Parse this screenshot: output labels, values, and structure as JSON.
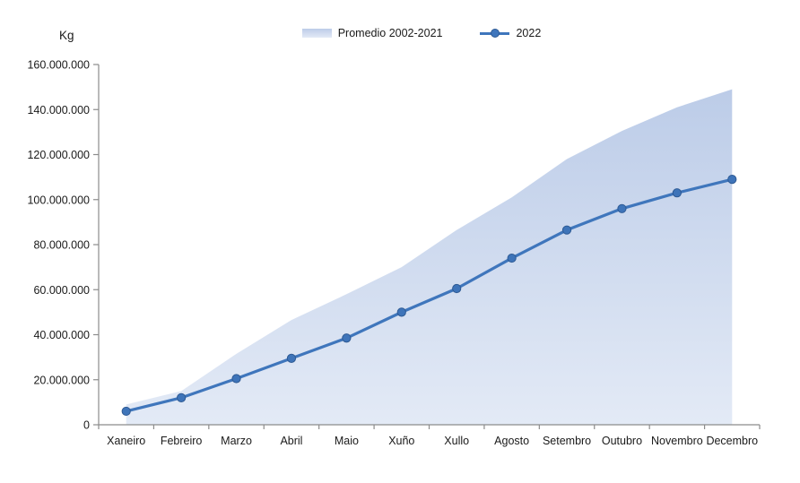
{
  "unit_label": "Kg",
  "legend": {
    "area_label": "Promedio 2002-2021",
    "line_label": "2022"
  },
  "colors": {
    "line": "#3f76bc",
    "marker_fill": "#3e74b9",
    "marker_edge": "#2e5a94",
    "area_top": "#bccce8",
    "area_bottom": "#e3eaf6",
    "axis": "#8c8c8c",
    "label_text": "#1a1a1a"
  },
  "chart_data": {
    "type": "area+line",
    "title": "",
    "xlabel": "",
    "ylabel": "Kg",
    "ylim": [
      0,
      160000000
    ],
    "ytick_step": 20000000,
    "ytick_labels": [
      "0",
      "20.000.000",
      "40.000.000",
      "60.000.000",
      "80.000.000",
      "100.000.000",
      "120.000.000",
      "140.000.000",
      "160.000.000"
    ],
    "grid": false,
    "legend_position": "top-center",
    "categories": [
      "Xaneiro",
      "Febreiro",
      "Marzo",
      "Abril",
      "Maio",
      "Xuño",
      "Xullo",
      "Agosto",
      "Setembro",
      "Outubro",
      "Novembro",
      "Decembro"
    ],
    "series": [
      {
        "name": "Promedio 2002-2021",
        "type": "area",
        "values": [
          9000000,
          15000000,
          31500000,
          46500000,
          58000000,
          70000000,
          86500000,
          101000000,
          118000000,
          130500000,
          141000000,
          149000000
        ]
      },
      {
        "name": "2022",
        "type": "line",
        "values": [
          6000000,
          12000000,
          20500000,
          29500000,
          38500000,
          50000000,
          60500000,
          74000000,
          86500000,
          96000000,
          103000000,
          109000000
        ]
      }
    ]
  }
}
